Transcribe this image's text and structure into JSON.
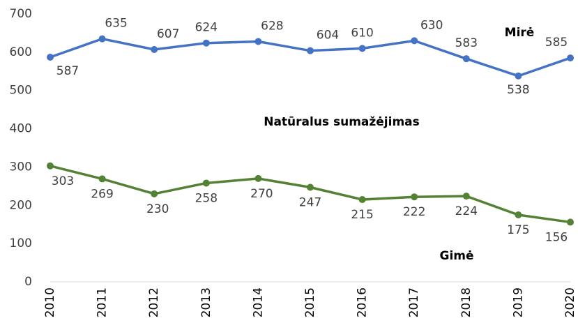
{
  "chart_data": {
    "type": "line",
    "categories": [
      "2010",
      "2011",
      "2012",
      "2013",
      "2014",
      "2015",
      "2016",
      "2017",
      "2018",
      "2019",
      "2020"
    ],
    "series": [
      {
        "name": "Mirė",
        "color": "#4472c4",
        "values": [
          587,
          635,
          607,
          624,
          628,
          604,
          610,
          630,
          583,
          538,
          585
        ]
      },
      {
        "name": "Gimė",
        "color": "#548235",
        "values": [
          303,
          269,
          230,
          258,
          270,
          247,
          215,
          222,
          224,
          175,
          156
        ]
      }
    ],
    "annotations": [
      "Natūralus sumažėjimas"
    ],
    "ylim": [
      0,
      700
    ],
    "yticks": [
      0,
      100,
      200,
      300,
      400,
      500,
      600,
      700
    ],
    "grid": false
  }
}
